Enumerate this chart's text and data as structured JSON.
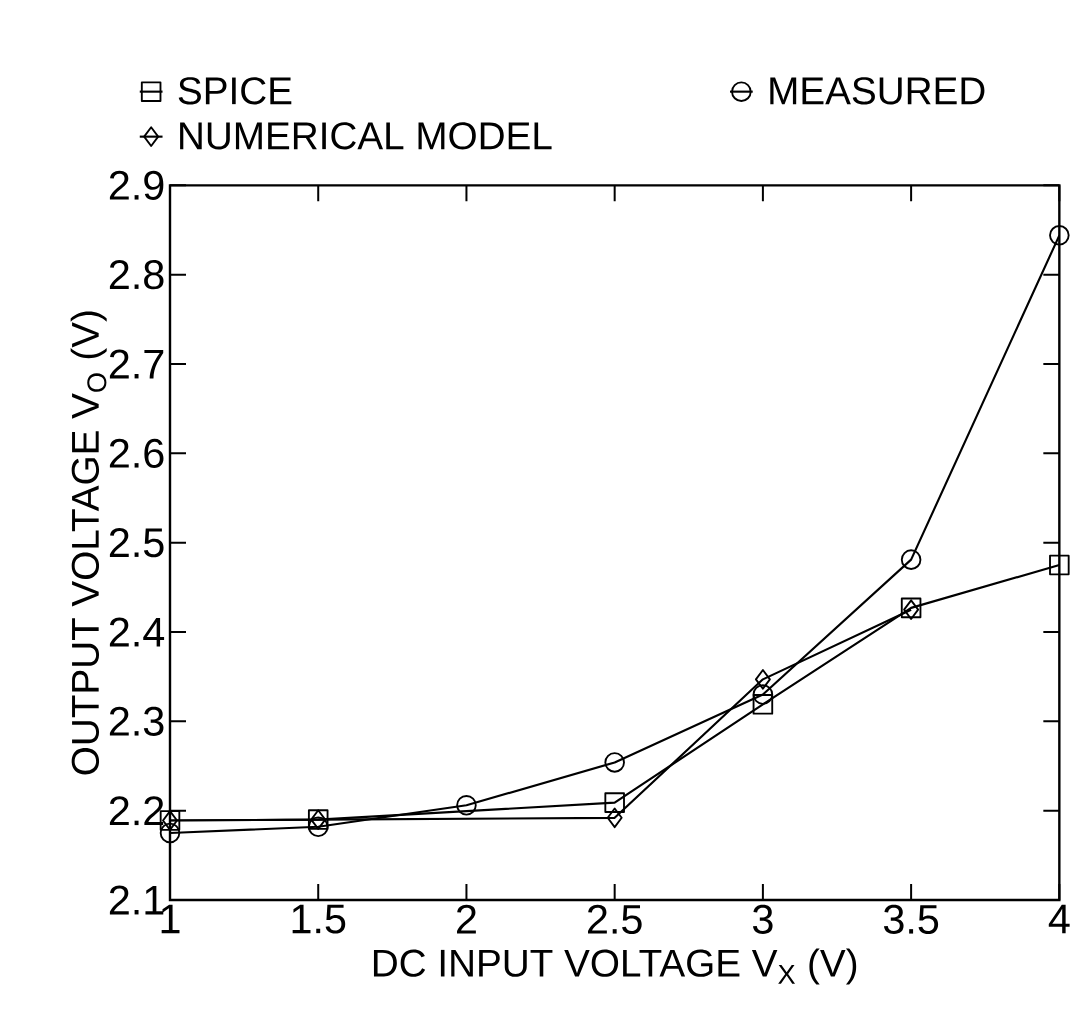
{
  "chart_data": {
    "type": "line",
    "xlabel": "DC INPUT VOLTAGE V$_{X}$ (V)",
    "ylabel": "OUTPUT VOLTAGE V$_{O}$ (V)",
    "xlim": [
      1,
      4
    ],
    "xticks": [
      1,
      1.5,
      2,
      2.5,
      3,
      3.5,
      4
    ],
    "ylim": [
      2.1,
      2.9
    ],
    "yticks": [
      2.1,
      2.2,
      2.3,
      2.4,
      2.5,
      2.6,
      2.7,
      2.8,
      2.9
    ],
    "legend": "top",
    "grid": false,
    "line_style": "solid",
    "series": [
      {
        "name": "SPICE",
        "color": "#000000",
        "marker": "square",
        "x": [
          1,
          1.5,
          2.5,
          3,
          3.5,
          4
        ],
        "values": [
          2.189,
          2.19,
          2.209,
          2.319,
          2.427,
          2.475
        ]
      },
      {
        "name": "MEASURED",
        "color": "#000000",
        "marker": "circle",
        "x": [
          1,
          1.5,
          2,
          2.5,
          3,
          3.5,
          4
        ],
        "values": [
          2.175,
          2.182,
          2.206,
          2.254,
          2.33,
          2.481,
          2.844
        ]
      },
      {
        "name": "NUMERICAL MODEL",
        "color": "#000000",
        "marker": "diamond",
        "x": [
          1,
          1.5,
          2.5,
          3,
          3.5
        ],
        "values": [
          2.189,
          2.19,
          2.192,
          2.347,
          2.425
        ]
      }
    ]
  }
}
